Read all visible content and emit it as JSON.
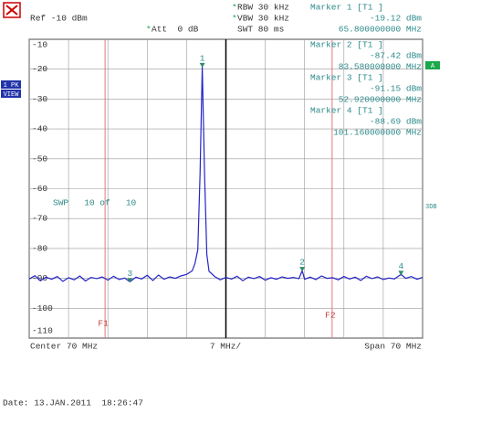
{
  "chart_data": {
    "type": "line",
    "star": "*",
    "header": {
      "ref": "Ref -10 dBm",
      "att": "Att  0 dB",
      "rbw": "RBW 30 kHz",
      "vbw": "VBW 30 kHz",
      "swt": "SWT 80 ms"
    },
    "side": {
      "trace": "1 PK",
      "view": "VIEW",
      "a": "A",
      "db": "3DB"
    },
    "sweep": "SWP   10 of   10",
    "footer": {
      "center": "Center 70 MHz",
      "div": "7 MHz/",
      "span": "Span 70 MHz"
    },
    "date": "Date: 13.JAN.2011  18:26:47",
    "xlim": [
      35,
      105
    ],
    "xticks": [
      35,
      42,
      49,
      56,
      63,
      70,
      77,
      84,
      91,
      98,
      105
    ],
    "ylim": [
      -110,
      -10
    ],
    "yticks": [
      -10,
      -20,
      -30,
      -40,
      -50,
      -60,
      -70,
      -80,
      -90,
      -100,
      -110
    ],
    "grid": true,
    "color": "#2424c8",
    "x": [
      35,
      36,
      37,
      38,
      39,
      40,
      41,
      42,
      43,
      44,
      45,
      46,
      47,
      48,
      49,
      50,
      51,
      52,
      52.92,
      54,
      55,
      56,
      57,
      58,
      59,
      60,
      61,
      62,
      63,
      64,
      64.5,
      65,
      65.4,
      65.8,
      66.2,
      66.6,
      67,
      68,
      69,
      70,
      71,
      72,
      73,
      74,
      75,
      76,
      77,
      78,
      79,
      80,
      81,
      82,
      83,
      83.58,
      84,
      85,
      86,
      87,
      88,
      89,
      90,
      91,
      92,
      93,
      94,
      95,
      96,
      97,
      98,
      99,
      100,
      101.16,
      102,
      103,
      104,
      105
    ],
    "values": [
      -90.2,
      -89.1,
      -90.8,
      -89.6,
      -90.3,
      -89.4,
      -91.0,
      -89.8,
      -90.5,
      -89.2,
      -90.9,
      -89.7,
      -90.1,
      -89.5,
      -90.6,
      -89.3,
      -90.4,
      -89.9,
      -91.15,
      -89.6,
      -90.2,
      -89.0,
      -90.7,
      -88.9,
      -90.3,
      -89.5,
      -90.0,
      -89.2,
      -88.7,
      -87.5,
      -85.0,
      -80.5,
      -55,
      -19.12,
      -55,
      -82,
      -87.6,
      -89.4,
      -90.5,
      -89.7,
      -90.2,
      -89.3,
      -90.8,
      -89.6,
      -90.1,
      -89.4,
      -90.6,
      -89.8,
      -90.3,
      -89.5,
      -90.0,
      -89.7,
      -90.1,
      -87.42,
      -90.3,
      -89.6,
      -90.4,
      -89.2,
      -90.0,
      -89.8,
      -90.5,
      -89.4,
      -90.2,
      -89.6,
      -90.7,
      -89.3,
      -90.1,
      -89.5,
      -90.4,
      -89.9,
      -90.2,
      -88.69,
      -90.0,
      -89.4,
      -90.3,
      -89.7
    ],
    "freq_lines": [
      {
        "label": "F1",
        "x": 48.5
      },
      {
        "label": "F2",
        "x": 88.9
      }
    ],
    "markers": [
      {
        "number": "1",
        "label": "Marker 1 [T1 ]",
        "value": -19.12,
        "value_label": "-19.12 dBm",
        "freq": 65.8,
        "freq_label": "65.800000000 MHz"
      },
      {
        "number": "2",
        "label": "Marker 2 [T1 ]",
        "value": -87.42,
        "value_label": "-87.42 dBm",
        "freq": 83.58,
        "freq_label": "83.580000000 MHz"
      },
      {
        "number": "3",
        "label": "Marker 3 [T1 ]",
        "value": -91.15,
        "value_label": "-91.15 dBm",
        "freq": 52.92,
        "freq_label": "52.920000000 MHz"
      },
      {
        "number": "4",
        "label": "Marker 4 [T1 ]",
        "value": -88.69,
        "value_label": "-88.69 dBm",
        "freq": 101.16,
        "freq_label": "101.160000000 MHz"
      }
    ]
  }
}
